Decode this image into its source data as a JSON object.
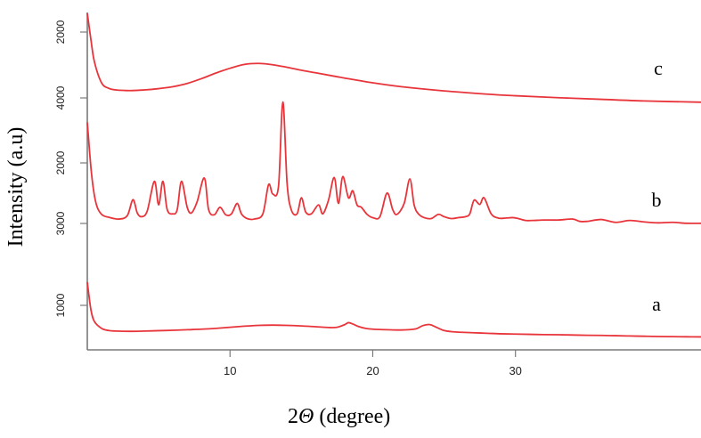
{
  "chart_data": {
    "type": "line",
    "title": "",
    "xlabel_prefix": "2",
    "xlabel_symbol": "Θ",
    "xlabel_suffix": " (degree)",
    "ylabel": "Intensity (a.u)",
    "x_ticks": [
      "10",
      "20",
      "30"
    ],
    "xlim": [
      0,
      43
    ],
    "line_color": "#e8353b",
    "axis_color": "#7a7a7a",
    "y_tick_labels": [
      {
        "text": "2000",
        "series": "c"
      },
      {
        "text": "4000",
        "series": "c"
      },
      {
        "text": "2000",
        "series": "b"
      },
      {
        "text": "3000",
        "series": "b"
      },
      {
        "text": "1000",
        "series": "a"
      }
    ],
    "series": [
      {
        "name": "c",
        "x": [
          0.0,
          0.25,
          0.5,
          1,
          1.5,
          2,
          3,
          4,
          5,
          6,
          7,
          8,
          9,
          10,
          11,
          12,
          13,
          14,
          15,
          16,
          18,
          20,
          22,
          25,
          28,
          30,
          33,
          36,
          39,
          43
        ],
        "y": [
          4700,
          3900,
          3200,
          2550,
          2380,
          2330,
          2310,
          2330,
          2370,
          2430,
          2530,
          2680,
          2850,
          3000,
          3120,
          3150,
          3110,
          3030,
          2940,
          2860,
          2700,
          2550,
          2430,
          2300,
          2200,
          2150,
          2090,
          2040,
          1990,
          1950
        ]
      },
      {
        "name": "b",
        "x": [
          0.0,
          0.3,
          0.6,
          1,
          1.6,
          2.2,
          2.8,
          3.2,
          3.5,
          3.8,
          4.2,
          4.7,
          5.0,
          5.3,
          5.6,
          6.0,
          6.3,
          6.6,
          7.0,
          7.3,
          7.7,
          8.2,
          8.5,
          8.9,
          9.3,
          9.7,
          10.1,
          10.5,
          10.8,
          11.2,
          11.7,
          12.3,
          12.7,
          13.0,
          13.4,
          13.7,
          14.0,
          14.3,
          14.7,
          15.0,
          15.3,
          15.7,
          16.2,
          16.5,
          16.9,
          17.3,
          17.6,
          17.9,
          18.3,
          18.6,
          18.9,
          19.2,
          19.6,
          20.0,
          20.5,
          21.0,
          21.4,
          21.7,
          22.2,
          22.6,
          22.9,
          23.2,
          23.6,
          24.1,
          24.6,
          25.0,
          25.5,
          26.0,
          26.5,
          26.8,
          27.1,
          27.5,
          27.8,
          28.3,
          28.8,
          29.3,
          29.8,
          30.2,
          30.7,
          31.2,
          32.0,
          33.0,
          34.0,
          34.5,
          35.0,
          36.0,
          37.0,
          38.0,
          39.0,
          40.0,
          41.0,
          42.0,
          43.0
        ],
        "y": [
          3500,
          2400,
          1800,
          1550,
          1480,
          1450,
          1520,
          1860,
          1580,
          1500,
          1620,
          2250,
          1750,
          2250,
          1650,
          1560,
          1650,
          2250,
          1700,
          1580,
          1820,
          2320,
          1650,
          1540,
          1700,
          1540,
          1560,
          1780,
          1560,
          1460,
          1450,
          1560,
          2180,
          1980,
          2150,
          3930,
          2200,
          1640,
          1560,
          1900,
          1600,
          1560,
          1750,
          1560,
          1850,
          2330,
          1780,
          2350,
          1900,
          2050,
          1750,
          1700,
          1550,
          1480,
          1500,
          2000,
          1650,
          1550,
          1780,
          2300,
          1750,
          1560,
          1480,
          1460,
          1550,
          1500,
          1460,
          1480,
          1500,
          1560,
          1850,
          1760,
          1900,
          1560,
          1470,
          1470,
          1480,
          1460,
          1420,
          1420,
          1430,
          1430,
          1450,
          1400,
          1400,
          1440,
          1380,
          1420,
          1390,
          1370,
          1380,
          1360,
          1360
        ]
      },
      {
        "name": "a",
        "x": [
          0.0,
          0.25,
          0.5,
          1,
          1.5,
          2,
          3,
          4,
          5,
          6,
          7,
          8,
          9,
          10,
          11,
          12,
          13,
          14,
          15,
          16,
          17,
          17.5,
          18.0,
          18.3,
          18.6,
          19.0,
          19.5,
          20.0,
          21,
          22,
          23.0,
          23.5,
          24.0,
          24.5,
          25.0,
          25.5,
          26,
          27,
          28,
          29,
          30,
          31,
          32,
          33,
          34,
          35,
          36,
          37,
          38,
          39,
          40,
          41,
          42,
          43
        ],
        "y": [
          2600,
          1600,
          1150,
          900,
          820,
          800,
          790,
          800,
          815,
          830,
          850,
          870,
          900,
          940,
          980,
          1010,
          1020,
          1010,
          990,
          960,
          930,
          940,
          1030,
          1110,
          1060,
          970,
          900,
          870,
          850,
          840,
          880,
          1000,
          1040,
          930,
          820,
          780,
          760,
          740,
          720,
          700,
          690,
          680,
          670,
          665,
          655,
          645,
          640,
          630,
          620,
          610,
          600,
          595,
          590,
          585
        ]
      }
    ],
    "curve_labels": [
      "c",
      "b",
      "a"
    ]
  }
}
